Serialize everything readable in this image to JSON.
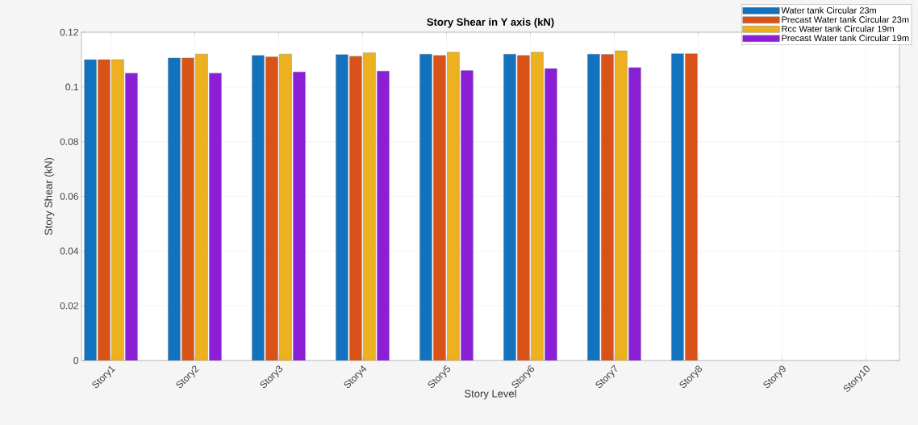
{
  "chart_data": {
    "type": "bar",
    "title": "Story Shear in Y axis (kN)",
    "xlabel": "Story Level",
    "ylabel": "Story Shear (kN)",
    "categories": [
      "Story1",
      "Story2",
      "Story3",
      "Story4",
      "Story5",
      "Story6",
      "Story7",
      "Story8",
      "Story9",
      "Story10"
    ],
    "series": [
      {
        "name": "Water tank Circular 23m",
        "color": "#1372bd",
        "values": [
          0.11,
          0.1106,
          0.1115,
          0.1118,
          0.112,
          0.112,
          0.112,
          0.1122,
          null,
          null
        ]
      },
      {
        "name": "Precast Water tank Circular 23m",
        "color": "#d95319",
        "values": [
          0.11,
          0.1106,
          0.111,
          0.1112,
          0.1115,
          0.1115,
          0.1119,
          0.1122,
          null,
          null
        ]
      },
      {
        "name": "Rcc Water tank Circular 19m",
        "color": "#edb120",
        "values": [
          0.11,
          0.112,
          0.112,
          0.1125,
          0.1127,
          0.1127,
          0.1132,
          null,
          null,
          null
        ]
      },
      {
        "name": "Precast Water tank Circular 19m",
        "color": "#8a1fd6",
        "values": [
          0.105,
          0.105,
          0.1055,
          0.1058,
          0.106,
          0.1067,
          0.1071,
          null,
          null,
          null
        ]
      }
    ],
    "ylim": [
      0,
      0.12
    ],
    "yticks": [
      0,
      0.02,
      0.04,
      0.06,
      0.08,
      0.1,
      0.12
    ],
    "grid": true,
    "legend": "top right"
  }
}
